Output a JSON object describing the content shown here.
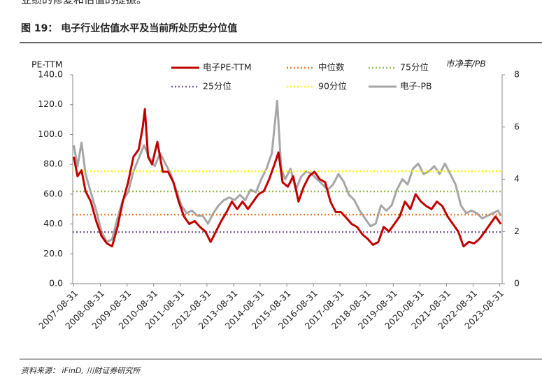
{
  "header": {
    "top_text": "业绩的修复和估值的提振。",
    "title": "图 19： 电子行业估值水平及当前所处历史分位值"
  },
  "chart_data": {
    "type": "line",
    "y_label": "PE-TTM",
    "y2_label": "市净率/PB",
    "xlim": [
      2007.62,
      2023.75
    ],
    "xticks": [
      {
        "value": 2007.66,
        "label": "2007-08-31"
      },
      {
        "value": 2008.66,
        "label": "2008-08-31"
      },
      {
        "value": 2009.66,
        "label": "2009-08-31"
      },
      {
        "value": 2010.66,
        "label": "2010-08-31"
      },
      {
        "value": 2011.66,
        "label": "2011-08-31"
      },
      {
        "value": 2012.66,
        "label": "2012-08-31"
      },
      {
        "value": 2013.66,
        "label": "2013-08-31"
      },
      {
        "value": 2014.66,
        "label": "2014-08-31"
      },
      {
        "value": 2015.66,
        "label": "2015-08-31"
      },
      {
        "value": 2016.66,
        "label": "2016-08-31"
      },
      {
        "value": 2017.66,
        "label": "2017-08-31"
      },
      {
        "value": 2018.66,
        "label": "2018-08-31"
      },
      {
        "value": 2019.66,
        "label": "2019-08-31"
      },
      {
        "value": 2020.66,
        "label": "2020-08-31"
      },
      {
        "value": 2021.66,
        "label": "2021-08-31"
      },
      {
        "value": 2022.66,
        "label": "2022-08-31"
      },
      {
        "value": 2023.66,
        "label": "2023-08-31"
      }
    ],
    "ylim": [
      0,
      140
    ],
    "yticks": [
      {
        "value": 0,
        "label": "0.0"
      },
      {
        "value": 20,
        "label": "20.0"
      },
      {
        "value": 40,
        "label": "40.0"
      },
      {
        "value": 60,
        "label": "60.0"
      },
      {
        "value": 80,
        "label": "80.0"
      },
      {
        "value": 100,
        "label": "100.0"
      },
      {
        "value": 120,
        "label": "120.0"
      },
      {
        "value": 140,
        "label": "140.0"
      }
    ],
    "y2lim": [
      0,
      8
    ],
    "y2ticks": [
      0,
      2,
      4,
      6,
      8
    ],
    "series": [
      {
        "name": "电子PE-TTM",
        "color": "#c00000",
        "x": [
          2007.66,
          2007.8,
          2007.95,
          2008.1,
          2008.3,
          2008.5,
          2008.7,
          2008.9,
          2009.1,
          2009.3,
          2009.5,
          2009.7,
          2009.9,
          2010.1,
          2010.25,
          2010.33,
          2010.45,
          2010.6,
          2010.8,
          2011.0,
          2011.2,
          2011.4,
          2011.6,
          2011.8,
          2012.0,
          2012.2,
          2012.4,
          2012.6,
          2012.8,
          2013.0,
          2013.2,
          2013.4,
          2013.6,
          2013.8,
          2014.0,
          2014.2,
          2014.4,
          2014.6,
          2014.8,
          2015.0,
          2015.2,
          2015.35,
          2015.5,
          2015.7,
          2015.9,
          2016.1,
          2016.3,
          2016.5,
          2016.7,
          2016.9,
          2017.1,
          2017.3,
          2017.5,
          2017.7,
          2017.9,
          2018.1,
          2018.3,
          2018.5,
          2018.7,
          2018.9,
          2019.1,
          2019.3,
          2019.5,
          2019.7,
          2019.9,
          2020.1,
          2020.3,
          2020.5,
          2020.7,
          2020.9,
          2021.1,
          2021.3,
          2021.5,
          2021.7,
          2021.9,
          2022.1,
          2022.3,
          2022.5,
          2022.7,
          2022.9,
          2023.1,
          2023.3,
          2023.5,
          2023.7
        ],
        "values": [
          85,
          72,
          76,
          62,
          55,
          42,
          32,
          27,
          25,
          38,
          55,
          68,
          85,
          90,
          105,
          117,
          85,
          80,
          95,
          75,
          75,
          68,
          55,
          45,
          40,
          42,
          38,
          35,
          28,
          35,
          42,
          48,
          55,
          50,
          55,
          50,
          55,
          60,
          62,
          70,
          80,
          88,
          68,
          65,
          72,
          55,
          65,
          72,
          75,
          70,
          68,
          55,
          48,
          48,
          44,
          40,
          38,
          33,
          30,
          26,
          28,
          38,
          35,
          40,
          45,
          55,
          50,
          60,
          55,
          52,
          50,
          55,
          52,
          45,
          40,
          35,
          25,
          28,
          27,
          30,
          35,
          40,
          45,
          40
        ]
      },
      {
        "name": "中位数",
        "color": "#ed7d31",
        "value": 46.3
      },
      {
        "name": "75分位",
        "color": "#9bbb59",
        "value": 61.8
      },
      {
        "name": "25分位",
        "color": "#7f5f9f",
        "value": 34.6
      },
      {
        "name": "90分位",
        "color": "#ffff00",
        "value": 75.4
      },
      {
        "name": "电子-PB",
        "color": "#a6a6a6",
        "axis": "y2",
        "x": [
          2007.66,
          2007.8,
          2007.95,
          2008.1,
          2008.3,
          2008.5,
          2008.7,
          2008.9,
          2009.1,
          2009.3,
          2009.5,
          2009.7,
          2009.9,
          2010.1,
          2010.3,
          2010.5,
          2010.7,
          2010.9,
          2011.1,
          2011.3,
          2011.5,
          2011.7,
          2011.9,
          2012.1,
          2012.3,
          2012.5,
          2012.7,
          2012.9,
          2013.1,
          2013.3,
          2013.5,
          2013.7,
          2013.9,
          2014.1,
          2014.3,
          2014.5,
          2014.7,
          2014.9,
          2015.1,
          2015.3,
          2015.45,
          2015.6,
          2015.8,
          2016.0,
          2016.2,
          2016.4,
          2016.6,
          2016.8,
          2017.0,
          2017.2,
          2017.4,
          2017.6,
          2017.8,
          2018.0,
          2018.2,
          2018.4,
          2018.6,
          2018.8,
          2019.0,
          2019.2,
          2019.4,
          2019.6,
          2019.8,
          2020.0,
          2020.2,
          2020.4,
          2020.6,
          2020.8,
          2021.0,
          2021.2,
          2021.4,
          2021.6,
          2021.8,
          2022.0,
          2022.2,
          2022.4,
          2022.6,
          2022.8,
          2023.0,
          2023.2,
          2023.4,
          2023.6,
          2023.7
        ],
        "values": [
          5.3,
          4.5,
          5.4,
          4.2,
          3.5,
          2.8,
          2.0,
          1.6,
          1.7,
          2.5,
          3.2,
          3.5,
          4.3,
          4.8,
          5.3,
          4.8,
          4.5,
          5.0,
          4.6,
          4.2,
          3.6,
          3.0,
          2.7,
          2.8,
          2.6,
          2.6,
          2.3,
          2.7,
          3.0,
          3.2,
          3.3,
          3.2,
          3.4,
          3.2,
          3.6,
          3.5,
          4.0,
          4.4,
          5.0,
          7.0,
          4.4,
          4.0,
          4.4,
          3.6,
          4.1,
          4.3,
          4.2,
          4.0,
          3.8,
          3.6,
          3.8,
          4.2,
          3.9,
          3.4,
          3.2,
          2.8,
          2.5,
          2.2,
          2.3,
          3.0,
          2.8,
          3.0,
          3.6,
          4.0,
          3.8,
          4.4,
          4.6,
          4.2,
          4.3,
          4.5,
          4.2,
          4.6,
          4.2,
          3.8,
          3.0,
          2.7,
          2.8,
          2.7,
          2.5,
          2.6,
          2.7,
          2.8,
          2.6
        ]
      }
    ]
  },
  "footer": {
    "source": "资料来源： iFinD, 川财证券研究所"
  }
}
